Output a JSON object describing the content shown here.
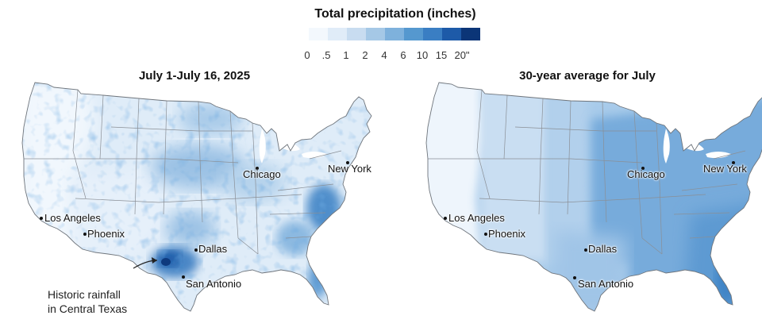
{
  "legend": {
    "title": "Total precipitation (inches)",
    "colors": [
      "#f3f8fd",
      "#e0ecf8",
      "#c8dcf0",
      "#a5c8e6",
      "#7eb1dc",
      "#5598cf",
      "#3a7ec3",
      "#1d5aa8",
      "#0b3577"
    ],
    "ticks": [
      "0",
      ".5",
      "1",
      "2",
      "4",
      "6",
      "10",
      "15",
      "20\""
    ]
  },
  "left_panel": {
    "title": "July 1-July 16, 2025",
    "cities": {
      "chicago": "Chicago",
      "new_york": "New York",
      "los_angeles": "Los Angeles",
      "phoenix": "Phoenix",
      "dallas": "Dallas",
      "san_antonio": "San Antonio"
    },
    "annotation_line1": "Historic rainfall",
    "annotation_line2": "in Central Texas"
  },
  "right_panel": {
    "title": "30-year average for July",
    "cities": {
      "chicago": "Chicago",
      "new_york": "New York",
      "los_angeles": "Los Angeles",
      "phoenix": "Phoenix",
      "dallas": "Dallas",
      "san_antonio": "San Antonio"
    }
  }
}
